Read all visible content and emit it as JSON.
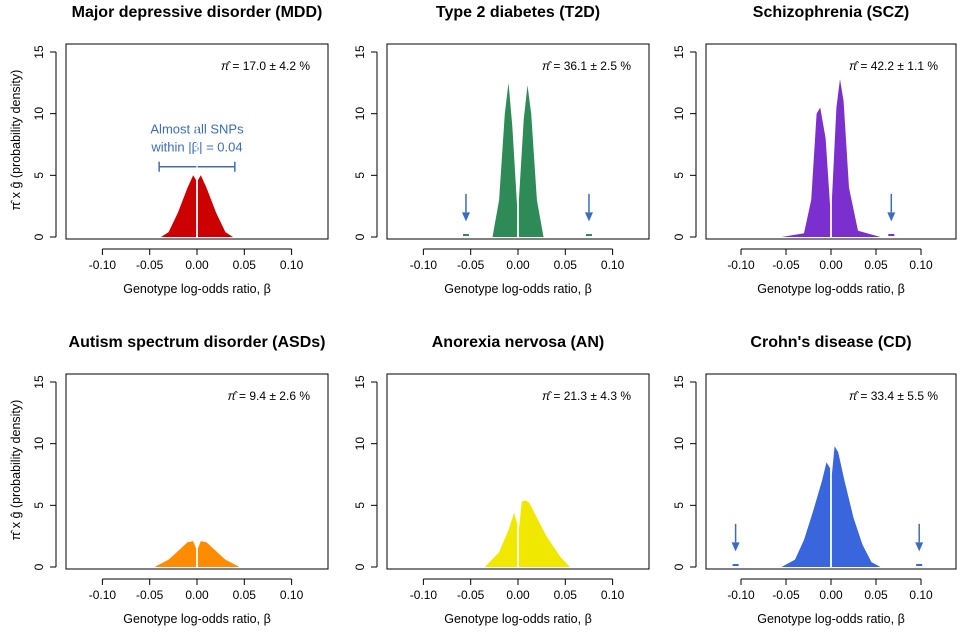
{
  "chart_data": [
    {
      "type": "area",
      "title": "Major depressive disorder (MDD)",
      "xlabel": "Genotype log-odds ratio, β",
      "ylabel": "π̂ x ĝ (probability density)",
      "xlim": [
        -0.13,
        0.13
      ],
      "ylim": [
        0,
        15
      ],
      "xticks": [
        "-0.10",
        "-0.05",
        "0.00",
        "0.05",
        "0.10"
      ],
      "yticks": [
        "0",
        "5",
        "10",
        "15"
      ],
      "annotation_symbol": "π̂",
      "annotation_text": "=   17.0 ± 4.2 %",
      "color": "#cc0000",
      "series": [
        {
          "name": "negative",
          "x": [
            -0.038,
            -0.03,
            -0.02,
            -0.01,
            -0.004,
            -0.001
          ],
          "y": [
            0,
            0.4,
            2.0,
            4.0,
            5.0,
            4.6
          ]
        },
        {
          "name": "positive",
          "x": [
            0.001,
            0.004,
            0.01,
            0.02,
            0.03,
            0.038
          ],
          "y": [
            4.6,
            5.0,
            4.0,
            2.0,
            0.4,
            0
          ]
        }
      ],
      "range_note": {
        "line1": "Almost all SNPs",
        "line2": "within |β| = 0.04",
        "from": -0.04,
        "to": 0.04,
        "y": 5.7
      }
    },
    {
      "type": "area",
      "title": "Type 2 diabetes (T2D)",
      "xlabel": "Genotype log-odds ratio, β",
      "xlim": [
        -0.13,
        0.13
      ],
      "ylim": [
        0,
        15
      ],
      "xticks": [
        "-0.10",
        "-0.05",
        "0.00",
        "0.05",
        "0.10"
      ],
      "yticks": [
        "0",
        "5",
        "10",
        "15"
      ],
      "annotation_symbol": "π̂",
      "annotation_text": "=   36.1 ± 2.5 %",
      "color": "#2e8b57",
      "series": [
        {
          "name": "negative",
          "x": [
            -0.027,
            -0.02,
            -0.014,
            -0.01,
            -0.006,
            -0.001
          ],
          "y": [
            0,
            3.0,
            10.0,
            12.5,
            9.0,
            2.5
          ]
        },
        {
          "name": "positive",
          "x": [
            0.001,
            0.006,
            0.01,
            0.014,
            0.02,
            0.027
          ],
          "y": [
            3.0,
            9.5,
            12.3,
            10.0,
            3.0,
            0
          ]
        }
      ],
      "arrows": [
        -0.055,
        0.075
      ]
    },
    {
      "type": "area",
      "title": "Schizophrenia (SCZ)",
      "xlabel": "Genotype log-odds ratio, β",
      "xlim": [
        -0.13,
        0.13
      ],
      "ylim": [
        0,
        15
      ],
      "xticks": [
        "-0.10",
        "-0.05",
        "0.00",
        "0.05",
        "0.10"
      ],
      "yticks": [
        "0",
        "5",
        "10",
        "15"
      ],
      "annotation_symbol": "π̂",
      "annotation_text": "=   42.2 ± 1.1 %",
      "color": "#7b2fcf",
      "series": [
        {
          "name": "negative",
          "x": [
            -0.055,
            -0.03,
            -0.022,
            -0.016,
            -0.012,
            -0.006,
            -0.001
          ],
          "y": [
            0,
            0.3,
            3.0,
            10.0,
            10.5,
            8.0,
            2.5
          ]
        },
        {
          "name": "positive",
          "x": [
            0.001,
            0.006,
            0.01,
            0.014,
            0.02,
            0.03,
            0.055
          ],
          "y": [
            3.0,
            10.5,
            12.8,
            11.0,
            4.0,
            0.5,
            0
          ]
        }
      ],
      "arrows": [
        0.067
      ]
    },
    {
      "type": "area",
      "title": "Autism spectrum disorder (ASDs)",
      "xlabel": "Genotype log-odds ratio, β",
      "xlim": [
        -0.13,
        0.13
      ],
      "ylim": [
        0,
        15
      ],
      "xticks": [
        "-0.10",
        "-0.05",
        "0.00",
        "0.05",
        "0.10"
      ],
      "yticks": [
        "0",
        "5",
        "10",
        "15"
      ],
      "annotation_symbol": "π̂",
      "annotation_text": "=    9.4 ± 2.6 %",
      "color": "#ff8c00",
      "series": [
        {
          "name": "negative",
          "x": [
            -0.045,
            -0.03,
            -0.02,
            -0.01,
            -0.004,
            -0.001
          ],
          "y": [
            0,
            0.6,
            1.3,
            2.0,
            2.1,
            1.5
          ]
        },
        {
          "name": "positive",
          "x": [
            0.001,
            0.004,
            0.01,
            0.02,
            0.03,
            0.045
          ],
          "y": [
            1.5,
            2.1,
            2.0,
            1.3,
            0.6,
            0
          ]
        }
      ]
    },
    {
      "type": "area",
      "title": "Anorexia nervosa (AN)",
      "xlabel": "Genotype log-odds ratio, β",
      "xlim": [
        -0.13,
        0.13
      ],
      "ylim": [
        0,
        15
      ],
      "xticks": [
        "-0.10",
        "-0.05",
        "0.00",
        "0.05",
        "0.10"
      ],
      "yticks": [
        "0",
        "5",
        "10",
        "15"
      ],
      "annotation_symbol": "π̂",
      "annotation_text": "=   21.3 ± 4.3 %",
      "color": "#f0e800",
      "series": [
        {
          "name": "negative",
          "x": [
            -0.035,
            -0.02,
            -0.01,
            -0.004,
            -0.001
          ],
          "y": [
            0,
            1.2,
            3.0,
            4.4,
            3.5
          ]
        },
        {
          "name": "positive",
          "x": [
            0.001,
            0.004,
            0.008,
            0.012,
            0.02,
            0.03,
            0.045,
            0.055
          ],
          "y": [
            3.0,
            5.3,
            5.4,
            5.2,
            4.0,
            2.5,
            0.8,
            0
          ]
        }
      ]
    },
    {
      "type": "area",
      "title": "Crohn's disease (CD)",
      "xlabel": "Genotype log-odds ratio, β",
      "xlim": [
        -0.13,
        0.13
      ],
      "ylim": [
        0,
        15
      ],
      "xticks": [
        "-0.10",
        "-0.05",
        "0.00",
        "0.05",
        "0.10"
      ],
      "yticks": [
        "0",
        "5",
        "10",
        "15"
      ],
      "annotation_symbol": "π̂",
      "annotation_text": "=   33.4 ± 5.5 %",
      "color": "#3a66dd",
      "series": [
        {
          "name": "negative",
          "x": [
            -0.055,
            -0.04,
            -0.03,
            -0.02,
            -0.01,
            -0.005,
            -0.001
          ],
          "y": [
            0,
            0.6,
            2.2,
            4.5,
            7.0,
            8.5,
            8.0
          ]
        },
        {
          "name": "positive",
          "x": [
            0.001,
            0.004,
            0.008,
            0.015,
            0.025,
            0.035,
            0.045,
            0.055
          ],
          "y": [
            7.5,
            9.8,
            9.3,
            7.0,
            4.0,
            1.8,
            0.4,
            0
          ]
        }
      ],
      "arrows": [
        -0.106,
        0.098
      ]
    }
  ]
}
